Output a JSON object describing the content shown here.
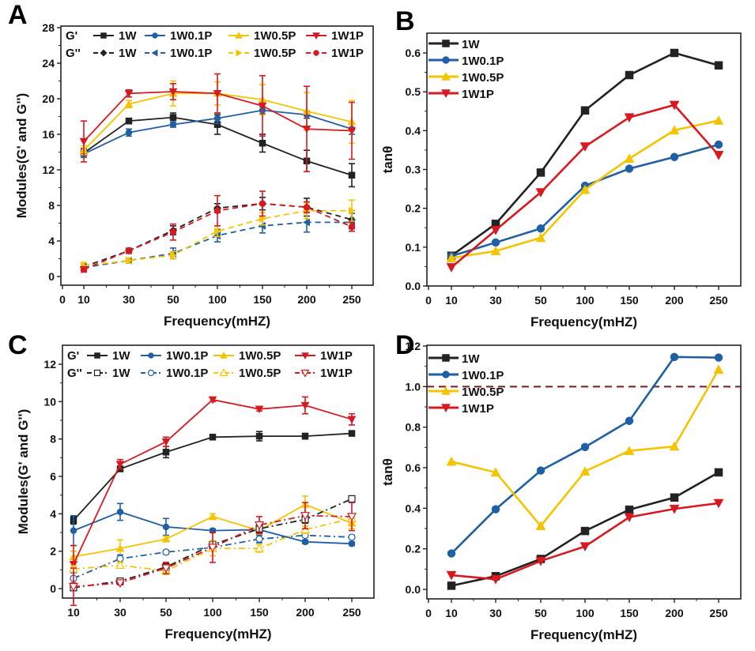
{
  "chart_data": [
    {
      "panel": "A",
      "type": "line",
      "title": "",
      "xlabel": "Frequency(mHZ)",
      "ylabel": "Modules(G' and G'')",
      "x_tick_labels": [
        "0",
        "10",
        "30",
        "50",
        "100",
        "150",
        "200",
        "250"
      ],
      "categories": [
        "10",
        "30",
        "50",
        "100",
        "150",
        "200",
        "250"
      ],
      "y_ticks": [
        0,
        4,
        8,
        12,
        16,
        20,
        24,
        28
      ],
      "ylim": [
        0,
        28
      ],
      "legend_position": "top",
      "legend_group_labels": [
        "G'",
        "G''"
      ],
      "series": [
        {
          "group": "G'",
          "name": "1W",
          "color": "#222222",
          "marker": "square",
          "style": "solid",
          "values": [
            13.9,
            17.5,
            17.9,
            17.1,
            15.0,
            13.0,
            11.4
          ],
          "errors": [
            0.5,
            0.3,
            0.5,
            1.1,
            1.0,
            1.2,
            1.3
          ]
        },
        {
          "group": "G'",
          "name": "1W0.1P",
          "color": "#1f5fa6",
          "marker": "circle",
          "style": "solid",
          "values": [
            13.8,
            16.2,
            17.1,
            17.8,
            18.7,
            18.2,
            16.6
          ],
          "errors": [
            0.4,
            0.4,
            0.3,
            0.6,
            0.4,
            0.4,
            0.6
          ]
        },
        {
          "group": "G'",
          "name": "1W0.5P",
          "color": "#f5c400",
          "marker": "triangle-up",
          "style": "solid",
          "values": [
            14.2,
            19.4,
            20.6,
            20.6,
            19.9,
            18.6,
            17.4
          ],
          "errors": [
            0.5,
            0.4,
            1.4,
            1.3,
            1.7,
            2.1,
            2.4
          ]
        },
        {
          "group": "G'",
          "name": "1W1P",
          "color": "#d71920",
          "marker": "triangle-down",
          "style": "solid",
          "values": [
            15.2,
            20.6,
            20.8,
            20.6,
            19.2,
            16.6,
            16.4
          ],
          "errors": [
            2.3,
            0.4,
            0.9,
            2.2,
            3.4,
            4.8,
            3.2
          ]
        },
        {
          "group": "G''",
          "name": "1W",
          "color": "#222222",
          "marker": "diamond",
          "style": "dash",
          "values": [
            1.1,
            2.9,
            5.2,
            7.7,
            8.2,
            7.8,
            6.4
          ],
          "errors": [
            0.3,
            0.2,
            0.5,
            0.5,
            0.7,
            1.0,
            1.0
          ]
        },
        {
          "group": "G''",
          "name": "1W0.1P",
          "color": "#1f5fa6",
          "marker": "triangle-left",
          "style": "dash",
          "values": [
            1.0,
            1.8,
            2.6,
            4.6,
            5.7,
            6.1,
            6.1
          ],
          "errors": [
            0.3,
            0.3,
            0.6,
            0.7,
            0.8,
            1.1,
            1.0
          ]
        },
        {
          "group": "G''",
          "name": "1W0.5P",
          "color": "#f5c400",
          "marker": "triangle-right",
          "style": "dash",
          "values": [
            1.2,
            1.8,
            2.4,
            5.1,
            6.5,
            7.4,
            7.4
          ],
          "errors": [
            0.4,
            0.3,
            0.4,
            0.6,
            0.7,
            0.9,
            1.2
          ]
        },
        {
          "group": "G''",
          "name": "1W1P",
          "color": "#d71920",
          "marker": "circle",
          "style": "dash",
          "values": [
            0.8,
            2.9,
            5.0,
            7.4,
            8.2,
            7.8,
            5.6
          ],
          "errors": [
            0.3,
            0.3,
            0.9,
            1.7,
            1.4,
            0.6,
            0.5
          ]
        }
      ]
    },
    {
      "panel": "B",
      "type": "line",
      "title": "",
      "xlabel": "Frequency(mHZ)",
      "ylabel": "tanθ",
      "x_tick_labels": [
        "0",
        "10",
        "30",
        "50",
        "100",
        "150",
        "200",
        "250"
      ],
      "categories": [
        "10",
        "30",
        "50",
        "100",
        "150",
        "200",
        "250"
      ],
      "y_tick_labels": [
        "0.0",
        "0.1",
        "0.2",
        "0.3",
        "0.4",
        "0.5",
        "0.6"
      ],
      "ylim": [
        0,
        0.65
      ],
      "legend_position": "top-left",
      "series": [
        {
          "name": "1W",
          "color": "#222222",
          "marker": "square",
          "values": [
            0.078,
            0.16,
            0.292,
            0.452,
            0.543,
            0.6,
            0.568
          ]
        },
        {
          "name": "1W0.1P",
          "color": "#1f5fa6",
          "marker": "circle",
          "values": [
            0.077,
            0.112,
            0.148,
            0.258,
            0.302,
            0.332,
            0.364
          ]
        },
        {
          "name": "1W0.5P",
          "color": "#f5c400",
          "marker": "triangle-up",
          "values": [
            0.072,
            0.09,
            0.124,
            0.248,
            0.328,
            0.401,
            0.426
          ]
        },
        {
          "name": "1W1P",
          "color": "#d71920",
          "marker": "triangle-down",
          "values": [
            0.048,
            0.144,
            0.241,
            0.359,
            0.434,
            0.466,
            0.337
          ]
        }
      ]
    },
    {
      "panel": "C",
      "type": "line",
      "title": "",
      "xlabel": "Frequency(mHZ)",
      "ylabel": "Modules(G' and G'')",
      "x_tick_labels": [
        "10",
        "30",
        "50",
        "100",
        "150",
        "200",
        "250"
      ],
      "categories": [
        "10",
        "30",
        "50",
        "100",
        "150",
        "200",
        "250"
      ],
      "y_ticks": [
        0,
        2,
        4,
        6,
        8,
        10,
        12
      ],
      "ylim": [
        -0.5,
        12.9
      ],
      "legend_position": "top",
      "legend_group_labels": [
        "G'",
        "G''"
      ],
      "series": [
        {
          "group": "G'",
          "name": "1W",
          "color": "#222222",
          "marker": "square",
          "style": "solid",
          "values": [
            3.65,
            6.4,
            7.3,
            8.1,
            8.15,
            8.15,
            8.3
          ],
          "errors": [
            0.2,
            0.1,
            0.3,
            0.1,
            0.25,
            0.15,
            0.1
          ]
        },
        {
          "group": "G'",
          "name": "1W0.1P",
          "color": "#1f5fa6",
          "marker": "circle",
          "style": "solid",
          "values": [
            3.1,
            4.1,
            3.3,
            3.1,
            3.15,
            2.5,
            2.4
          ],
          "errors": [
            0.8,
            0.45,
            0.45,
            0.1,
            0.1,
            0.1,
            0.1
          ]
        },
        {
          "group": "G'",
          "name": "1W0.5P",
          "color": "#f5c400",
          "marker": "triangle-up",
          "style": "solid",
          "values": [
            1.7,
            2.15,
            2.65,
            3.85,
            3.1,
            4.5,
            3.5
          ],
          "errors": [
            0.3,
            0.45,
            0.15,
            0.15,
            0.2,
            0.45,
            0.3
          ]
        },
        {
          "group": "G'",
          "name": "1W1P",
          "color": "#d71920",
          "marker": "triangle-down",
          "style": "solid",
          "values": [
            1.3,
            6.65,
            7.85,
            10.1,
            9.6,
            9.8,
            9.05
          ],
          "errors": [
            1.0,
            0.25,
            0.25,
            0.1,
            0.1,
            0.45,
            0.3
          ]
        },
        {
          "group": "G''",
          "name": "1W",
          "color": "#222222",
          "marker": "square-open",
          "style": "dashdot",
          "values": [
            0.05,
            0.4,
            1.15,
            2.35,
            3.2,
            3.7,
            4.8
          ],
          "errors": [
            0.1,
            0.1,
            0.2,
            0.2,
            0.2,
            0.2,
            0.1
          ]
        },
        {
          "group": "G''",
          "name": "1W0.1P",
          "color": "#1f5fa6",
          "marker": "circle-open",
          "style": "dashdot",
          "values": [
            0.55,
            1.6,
            1.95,
            2.2,
            2.65,
            2.85,
            2.75
          ],
          "errors": [
            0.3,
            0.2,
            0.1,
            0.1,
            0.2,
            0.1,
            0.1
          ]
        },
        {
          "group": "G''",
          "name": "1W0.5P",
          "color": "#f5c400",
          "marker": "triangle-up-open",
          "style": "dashdot",
          "values": [
            1.05,
            1.25,
            0.95,
            2.15,
            2.15,
            3.15,
            3.75
          ],
          "errors": [
            0.15,
            0.15,
            0.2,
            0.4,
            0.2,
            0.2,
            0.2
          ]
        },
        {
          "group": "G''",
          "name": "1W1P",
          "color": "#d71920",
          "marker": "triangle-down-open",
          "style": "dashdot",
          "values": [
            0.1,
            0.3,
            1.1,
            2.2,
            3.4,
            3.9,
            3.85
          ],
          "errors": [
            1.0,
            0.1,
            0.3,
            0.8,
            0.45,
            0.7,
            0.75
          ]
        }
      ]
    },
    {
      "panel": "D",
      "type": "line",
      "title": "",
      "xlabel": "Frequency(mHZ)",
      "ylabel": "tanθ",
      "x_tick_labels": [
        "0",
        "10",
        "30",
        "50",
        "100",
        "150",
        "200",
        "250"
      ],
      "categories": [
        "10",
        "30",
        "50",
        "100",
        "150",
        "200",
        "250"
      ],
      "y_tick_labels": [
        "0.0",
        "0.2",
        "0.4",
        "0.6",
        "0.8",
        "1.0",
        "1.2"
      ],
      "ylim": [
        -0.05,
        1.2
      ],
      "reference_line": {
        "y": 1.0,
        "style": "dashed",
        "color": "#7a1a1a"
      },
      "legend_position": "top-left",
      "series": [
        {
          "name": "1W",
          "color": "#222222",
          "marker": "square",
          "values": [
            0.018,
            0.065,
            0.15,
            0.288,
            0.393,
            0.453,
            0.577
          ]
        },
        {
          "name": "1W0.1P",
          "color": "#1f5fa6",
          "marker": "circle",
          "values": [
            0.177,
            0.395,
            0.586,
            0.702,
            0.831,
            1.146,
            1.143
          ]
        },
        {
          "name": "1W0.5P",
          "color": "#f5c400",
          "marker": "triangle-up",
          "values": [
            0.63,
            0.577,
            0.313,
            0.582,
            0.683,
            0.705,
            1.084
          ]
        },
        {
          "name": "1W1P",
          "color": "#d71920",
          "marker": "triangle-down",
          "values": [
            0.07,
            0.05,
            0.14,
            0.212,
            0.356,
            0.397,
            0.425
          ]
        }
      ]
    }
  ],
  "panels": {
    "A": {
      "label": "A"
    },
    "B": {
      "label": "B"
    },
    "C": {
      "label": "C"
    },
    "D": {
      "label": "D"
    }
  }
}
